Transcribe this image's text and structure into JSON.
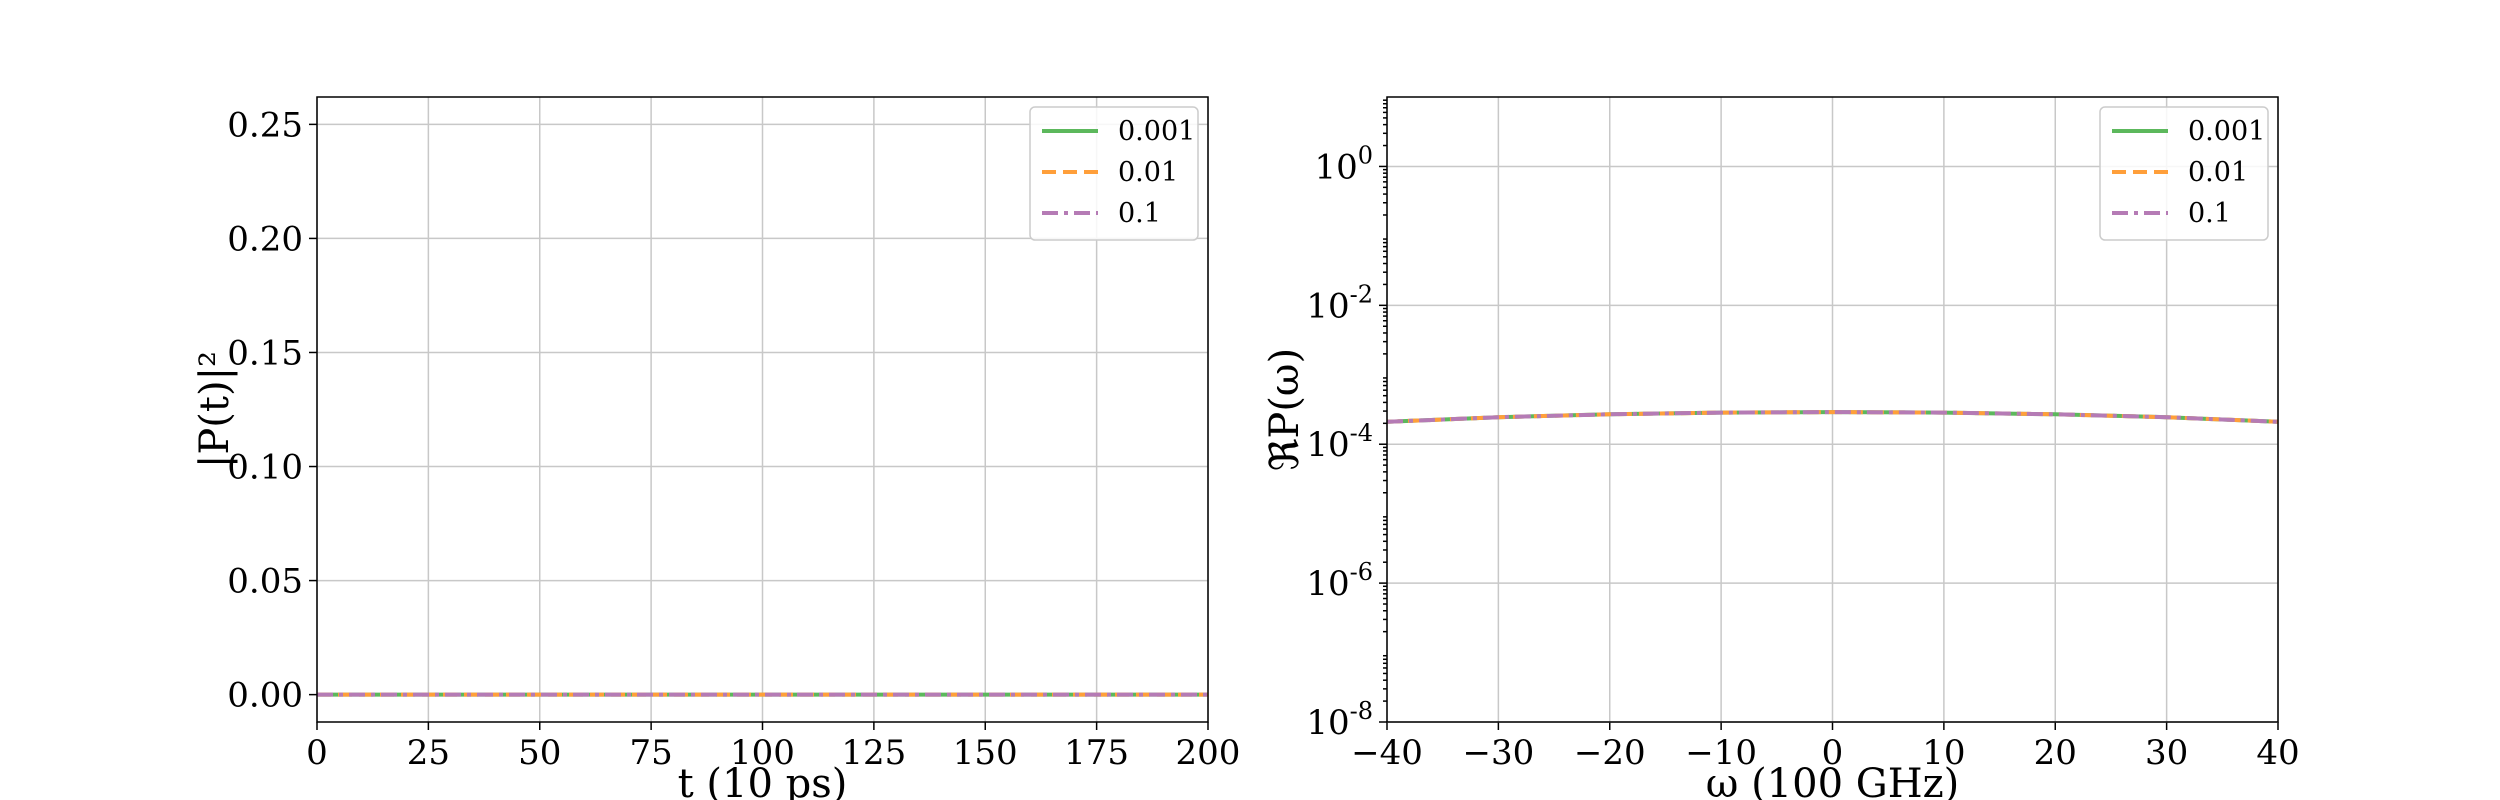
{
  "chart_data": [
    {
      "type": "line",
      "xlabel": "t (10 ps)",
      "ylabel": "|P(t)|²",
      "xlim": [
        0,
        200
      ],
      "ylim": [
        -0.012,
        0.262
      ],
      "xticks": [
        0,
        25,
        50,
        75,
        100,
        125,
        150,
        175,
        200
      ],
      "xtick_labels": [
        "0",
        "25",
        "50",
        "75",
        "100",
        "125",
        "150",
        "175",
        "200"
      ],
      "yticks": [
        0.0,
        0.05,
        0.1,
        0.15,
        0.2,
        0.25
      ],
      "ytick_labels": [
        "0.00",
        "0.05",
        "0.10",
        "0.15",
        "0.20",
        "0.25"
      ],
      "grid": true,
      "legend_position": "top-right",
      "series": [
        {
          "name": "0.001",
          "color": "#5cb85c",
          "dash": "solid",
          "x": [
            0,
            200
          ],
          "y": [
            0.0,
            0.0
          ]
        },
        {
          "name": "0.01",
          "color": "#ff9f3a",
          "dash": "dashed",
          "x": [
            0,
            200
          ],
          "y": [
            0.0,
            0.0
          ]
        },
        {
          "name": "0.1",
          "color": "#b57bb5",
          "dash": "dashdot",
          "x": [
            0,
            200
          ],
          "y": [
            0.0,
            0.0
          ]
        }
      ]
    },
    {
      "type": "line",
      "xlabel": "ω (100 GHz)",
      "ylabel": "ℜP(ω)",
      "xlim": [
        -40,
        40
      ],
      "ylim_log10": [
        -8,
        1
      ],
      "yscale": "log",
      "xticks": [
        -40,
        -30,
        -20,
        -10,
        0,
        10,
        20,
        30,
        40
      ],
      "xtick_labels": [
        "−40",
        "−30",
        "−20",
        "−10",
        "0",
        "10",
        "20",
        "30",
        "40"
      ],
      "yticks_log10": [
        -8,
        -6,
        -4,
        -2,
        0
      ],
      "ytick_bases": [
        "10",
        "10",
        "10",
        "10",
        "10"
      ],
      "ytick_exponents": [
        "-8",
        "-6",
        "-4",
        "-2",
        "0"
      ],
      "grid": true,
      "legend_position": "top-right",
      "series": [
        {
          "name": "0.001",
          "color": "#5cb85c",
          "dash": "solid",
          "x": [
            -40,
            -30,
            -20,
            -10,
            0,
            10,
            20,
            30,
            40
          ],
          "y": [
            0.00021,
            0.000245,
            0.00027,
            0.000285,
            0.00029,
            0.000285,
            0.00027,
            0.000245,
            0.00021
          ]
        },
        {
          "name": "0.01",
          "color": "#ff9f3a",
          "dash": "dashed",
          "x": [
            -40,
            -30,
            -20,
            -10,
            0,
            10,
            20,
            30,
            40
          ],
          "y": [
            0.00021,
            0.000245,
            0.00027,
            0.000285,
            0.00029,
            0.000285,
            0.00027,
            0.000245,
            0.00021
          ]
        },
        {
          "name": "0.1",
          "color": "#b57bb5",
          "dash": "dashdot",
          "x": [
            -40,
            -30,
            -20,
            -10,
            0,
            10,
            20,
            30,
            40
          ],
          "y": [
            0.00021,
            0.000245,
            0.00027,
            0.000285,
            0.00029,
            0.000285,
            0.00027,
            0.000245,
            0.00021
          ]
        }
      ]
    }
  ]
}
